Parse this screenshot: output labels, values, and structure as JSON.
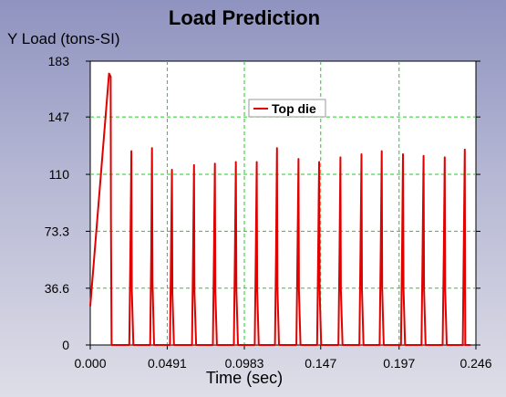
{
  "colors": {
    "series": "#e00000",
    "grid": "#22cc22",
    "plot_background": "#ffffff"
  },
  "chart_data": {
    "type": "line",
    "title": "Load Prediction",
    "xlabel": "Time (sec)",
    "ylabel": "Y Load (tons-SI)",
    "xlim": [
      0,
      0.246
    ],
    "ylim": [
      0,
      183
    ],
    "x_ticks": [
      "0.000",
      "0.0491",
      "0.0983",
      "0.147",
      "0.197",
      "0.246"
    ],
    "y_ticks": [
      "0",
      "36.6",
      "73.3",
      "110",
      "147",
      "183"
    ],
    "grid": true,
    "legend_position": "top-center",
    "series": [
      {
        "name": "Top die",
        "color": "#e00000",
        "x": [
          0.0,
          0.012,
          0.013,
          0.0132,
          0.0136,
          0.0148,
          0.0249,
          0.0256,
          0.0262,
          0.0265,
          0.0275,
          0.0382,
          0.0389,
          0.0394,
          0.0397,
          0.0407,
          0.0508,
          0.0515,
          0.0521,
          0.0524,
          0.0534,
          0.0649,
          0.0656,
          0.0662,
          0.0665,
          0.0675,
          0.0782,
          0.0789,
          0.0795,
          0.0798,
          0.0808,
          0.0916,
          0.0923,
          0.0929,
          0.0932,
          0.0942,
          0.1049,
          0.1056,
          0.1062,
          0.1065,
          0.1075,
          0.1178,
          0.1185,
          0.1191,
          0.1194,
          0.1204,
          0.1315,
          0.1322,
          0.1328,
          0.1331,
          0.1341,
          0.1447,
          0.1454,
          0.146,
          0.1463,
          0.1473,
          0.1583,
          0.159,
          0.1596,
          0.1599,
          0.1609,
          0.1717,
          0.1724,
          0.173,
          0.1733,
          0.1743,
          0.1846,
          0.1853,
          0.1859,
          0.1862,
          0.1872,
          0.1982,
          0.1989,
          0.1995,
          0.1998,
          0.2008,
          0.2113,
          0.212,
          0.2126,
          0.2129,
          0.2139,
          0.2248,
          0.2255,
          0.2261,
          0.2264,
          0.2274,
          0.2376,
          0.2383,
          0.2389,
          0.2392,
          0.2402,
          0.2427
        ],
        "y": [
          25,
          175,
          173,
          80,
          0,
          0,
          0,
          60,
          125,
          35,
          0,
          0,
          60,
          127,
          40,
          0,
          0,
          60,
          113,
          33,
          0,
          0,
          60,
          116,
          34,
          0,
          0,
          60,
          117,
          34,
          0,
          0,
          60,
          118,
          35,
          0,
          0,
          60,
          118,
          35,
          0,
          0,
          60,
          127,
          37,
          0,
          0,
          60,
          120,
          35,
          0,
          0,
          60,
          118,
          35,
          0,
          0,
          60,
          121,
          35,
          0,
          0,
          60,
          123,
          36,
          0,
          0,
          60,
          125,
          36,
          0,
          0,
          60,
          123,
          36,
          0,
          0,
          60,
          122,
          36,
          0,
          0,
          60,
          121,
          35,
          0,
          0,
          70,
          126,
          0,
          0,
          0
        ]
      }
    ]
  }
}
